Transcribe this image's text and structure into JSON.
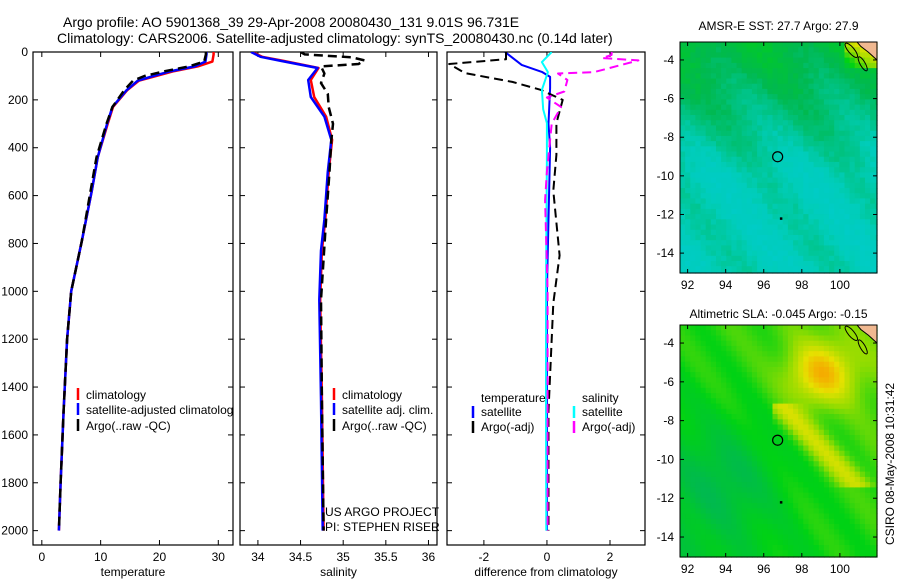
{
  "header": {
    "title_line1": "Argo profile: AO 5901368_39 29-Apr-2008 20080430_131 9.01S 96.731E",
    "title_line2": "Climatology: CARS2006. Satellite-adjusted climatology: synTS_20080430.nc (0.14d later)"
  },
  "side_stamp": "CSIRO 08-May-2008 10:31:42",
  "credits": {
    "line1": "US ARGO PROJECT",
    "line2": "PI: STEPHEN RISER"
  },
  "colors": {
    "climatology": "#ff0000",
    "satellite": "#0000ff",
    "argo": "#000000",
    "salinity_satellite": "#00ffff",
    "salinity_argo": "#ff00ff"
  },
  "chart_data": [
    {
      "type": "line",
      "xlabel": "temperature",
      "ylabel": "",
      "xlim": [
        -1.5,
        32.5
      ],
      "ylim": [
        0,
        2060
      ],
      "y_inverted": true,
      "xticks": [
        0,
        10,
        20,
        30
      ],
      "yticks": [
        0,
        200,
        400,
        600,
        800,
        1000,
        1200,
        1400,
        1600,
        1800,
        2000
      ],
      "legend": [
        "climatology",
        "satellite-adjusted climatolog",
        "Argo(..raw -QC)"
      ],
      "legend_placement": "bottom-right",
      "depth": [
        0,
        10,
        40,
        60,
        80,
        100,
        120,
        160,
        230,
        300,
        440,
        580,
        790,
        1000,
        1200,
        1500,
        1800,
        2000
      ],
      "series": [
        {
          "name": "climatology",
          "color": "#ff0000",
          "dash": false,
          "values": [
            29.2,
            29.2,
            29.0,
            26.5,
            22.5,
            19.5,
            16.5,
            14.5,
            12.1,
            11.2,
            9.5,
            8.5,
            6.8,
            5.0,
            4.3,
            3.7,
            3.2,
            2.9
          ]
        },
        {
          "name": "satellite-adjusted climatology",
          "color": "#0000ff",
          "dash": false,
          "values": [
            28.0,
            28.0,
            27.8,
            26.0,
            22.0,
            19.0,
            16.3,
            14.4,
            12.0,
            11.1,
            9.5,
            8.5,
            6.8,
            5.0,
            4.3,
            3.7,
            3.2,
            2.9
          ]
        },
        {
          "name": "Argo(..raw -QC)",
          "color": "#000000",
          "dash": true,
          "values": [
            27.9,
            27.9,
            27.6,
            25.0,
            21.0,
            17.5,
            15.5,
            14.0,
            12.0,
            11.0,
            9.3,
            8.3,
            6.8,
            5.0,
            4.3,
            3.7,
            3.2,
            2.9
          ]
        }
      ]
    },
    {
      "type": "line",
      "xlabel": "salinity",
      "xlim": [
        33.79,
        36.1
      ],
      "ylim": [
        0,
        2060
      ],
      "y_inverted": true,
      "xticks": [
        34,
        34.5,
        35,
        35.5,
        36
      ],
      "legend": [
        "climatology",
        "satellite adj. clim.",
        "Argo(..raw -QC)"
      ],
      "legend_placement": "bottom-right",
      "series": [
        {
          "name": "climatology",
          "color": "#ff0000",
          "dash": false,
          "depth": [
            0,
            20,
            37,
            67,
            117,
            188,
            270,
            367,
            500,
            700,
            830,
            1035,
            1450,
            2000
          ],
          "values": [
            33.93,
            34.05,
            34.3,
            34.71,
            34.62,
            34.66,
            34.8,
            34.87,
            34.83,
            34.79,
            34.75,
            34.73,
            34.75,
            34.77
          ]
        },
        {
          "name": "satellite adj. clim.",
          "color": "#0000ff",
          "dash": false,
          "depth": [
            0,
            20,
            37,
            67,
            117,
            188,
            270,
            367,
            500,
            700,
            830,
            1035,
            1450,
            2000
          ],
          "values": [
            33.92,
            34.03,
            34.27,
            34.7,
            34.59,
            34.62,
            34.78,
            34.86,
            34.82,
            34.78,
            34.74,
            34.72,
            34.74,
            34.76
          ]
        },
        {
          "name": "Argo(..raw -QC)",
          "color": "#000000",
          "dash": true,
          "depth": [
            0,
            10,
            22,
            35,
            50,
            60,
            90,
            130,
            175,
            230,
            300,
            370,
            500,
            700,
            1035,
            1450,
            2000
          ],
          "values": [
            34.5,
            34.55,
            35.1,
            35.25,
            35.18,
            34.74,
            34.78,
            34.74,
            34.82,
            34.83,
            34.88,
            34.86,
            34.84,
            34.8,
            34.74,
            34.75,
            34.77
          ]
        }
      ]
    },
    {
      "type": "line",
      "xlabel": "difference from climatology",
      "xlim": [
        -3.17,
        3.11
      ],
      "ylim": [
        0,
        2060
      ],
      "y_inverted": true,
      "xticks": [
        -2,
        0,
        2
      ],
      "legend_temperature_title": "temperature",
      "legend_salinity_title": "salinity",
      "legend": [
        "satellite",
        "Argo(-adj)",
        "satellite",
        "Argo(-adj)"
      ],
      "legend_placement": "bottom",
      "series": [
        {
          "name": "temperature satellite",
          "color": "#0000ff",
          "dash": false,
          "depth": [
            0,
            54,
            83,
            104,
            150,
            300,
            400,
            700,
            1000,
            1500,
            2000
          ],
          "values": [
            -1.33,
            -0.8,
            -0.16,
            0.1,
            0.1,
            0.05,
            0.1,
            0.05,
            0.0,
            0.0,
            0.0
          ]
        },
        {
          "name": "temperature Argo(-adj)",
          "color": "#000000",
          "dash": true,
          "depth": [
            0,
            30,
            50,
            88,
            125,
            158,
            200,
            297,
            430,
            580,
            850,
            1050,
            1500,
            2000
          ],
          "values": [
            -1.3,
            -1.3,
            -3.1,
            -2.6,
            -1.1,
            -0.2,
            0.5,
            0.3,
            0.3,
            0.2,
            0.4,
            0.2,
            0.05,
            0.05
          ]
        },
        {
          "name": "salinity satellite",
          "color": "#00ffff",
          "dash": false,
          "depth": [
            0,
            42,
            84,
            158,
            240,
            297,
            430,
            1000,
            1500,
            2000
          ],
          "values": [
            0.15,
            -0.16,
            0.03,
            -0.16,
            -0.12,
            0.0,
            0.0,
            -0.03,
            -0.03,
            -0.02
          ]
        },
        {
          "name": "salinity Argo(-adj)",
          "color": "#ff00ff",
          "dash": true,
          "depth": [
            0,
            12,
            25,
            35,
            84,
            90,
            117,
            165,
            190,
            230,
            300,
            500,
            620,
            1000,
            1500,
            2000
          ],
          "values": [
            2.05,
            2.05,
            1.75,
            2.9,
            1.5,
            0.35,
            0.65,
            0.55,
            0.0,
            0.45,
            0.15,
            0.0,
            -0.06,
            0.02,
            0.02,
            0.02
          ]
        }
      ]
    },
    {
      "type": "heatmap",
      "title": "AMSR-E SST: 27.7 Argo: 27.9",
      "xlim": [
        91.6,
        101.95
      ],
      "ylim": [
        -15.03,
        -3.07
      ],
      "xticks": [
        92,
        94,
        96,
        98,
        100
      ],
      "yticks": [
        -4,
        -6,
        -8,
        -10,
        -12,
        -14
      ],
      "argo_location": [
        96.73,
        -9.01
      ],
      "marker_dot": [
        96.9,
        -12.2
      ]
    },
    {
      "type": "heatmap",
      "title": "Altimetric SLA: -0.045 Argo: -0.15",
      "xlim": [
        91.6,
        101.95
      ],
      "ylim": [
        -15.03,
        -3.07
      ],
      "xticks": [
        92,
        94,
        96,
        98,
        100
      ],
      "yticks": [
        -4,
        -6,
        -8,
        -10,
        -12,
        -14
      ],
      "argo_location": [
        96.73,
        -9.01
      ],
      "marker_dot": [
        96.9,
        -12.2
      ]
    }
  ]
}
